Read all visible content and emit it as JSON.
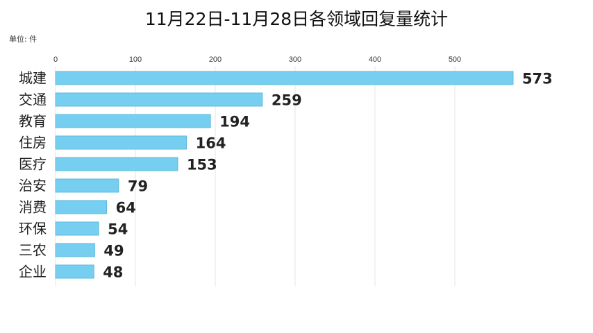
{
  "chart_data": {
    "type": "bar",
    "orientation": "horizontal",
    "title": "11月22日-11月28日各领域回复量统计",
    "unit_label": "单位: 件",
    "categories": [
      "城建",
      "交通",
      "教育",
      "住房",
      "医疗",
      "治安",
      "消费",
      "环保",
      "三农",
      "企业"
    ],
    "values": [
      573,
      259,
      194,
      164,
      153,
      79,
      64,
      54,
      49,
      48
    ],
    "x_ticks": [
      0,
      100,
      200,
      300,
      400,
      500
    ],
    "xlim": [
      0,
      600
    ],
    "grid": true,
    "bar_color": "#76cff0",
    "bar_edge_color": "#5ab8dc",
    "grid_color": "#e6e6e6"
  }
}
